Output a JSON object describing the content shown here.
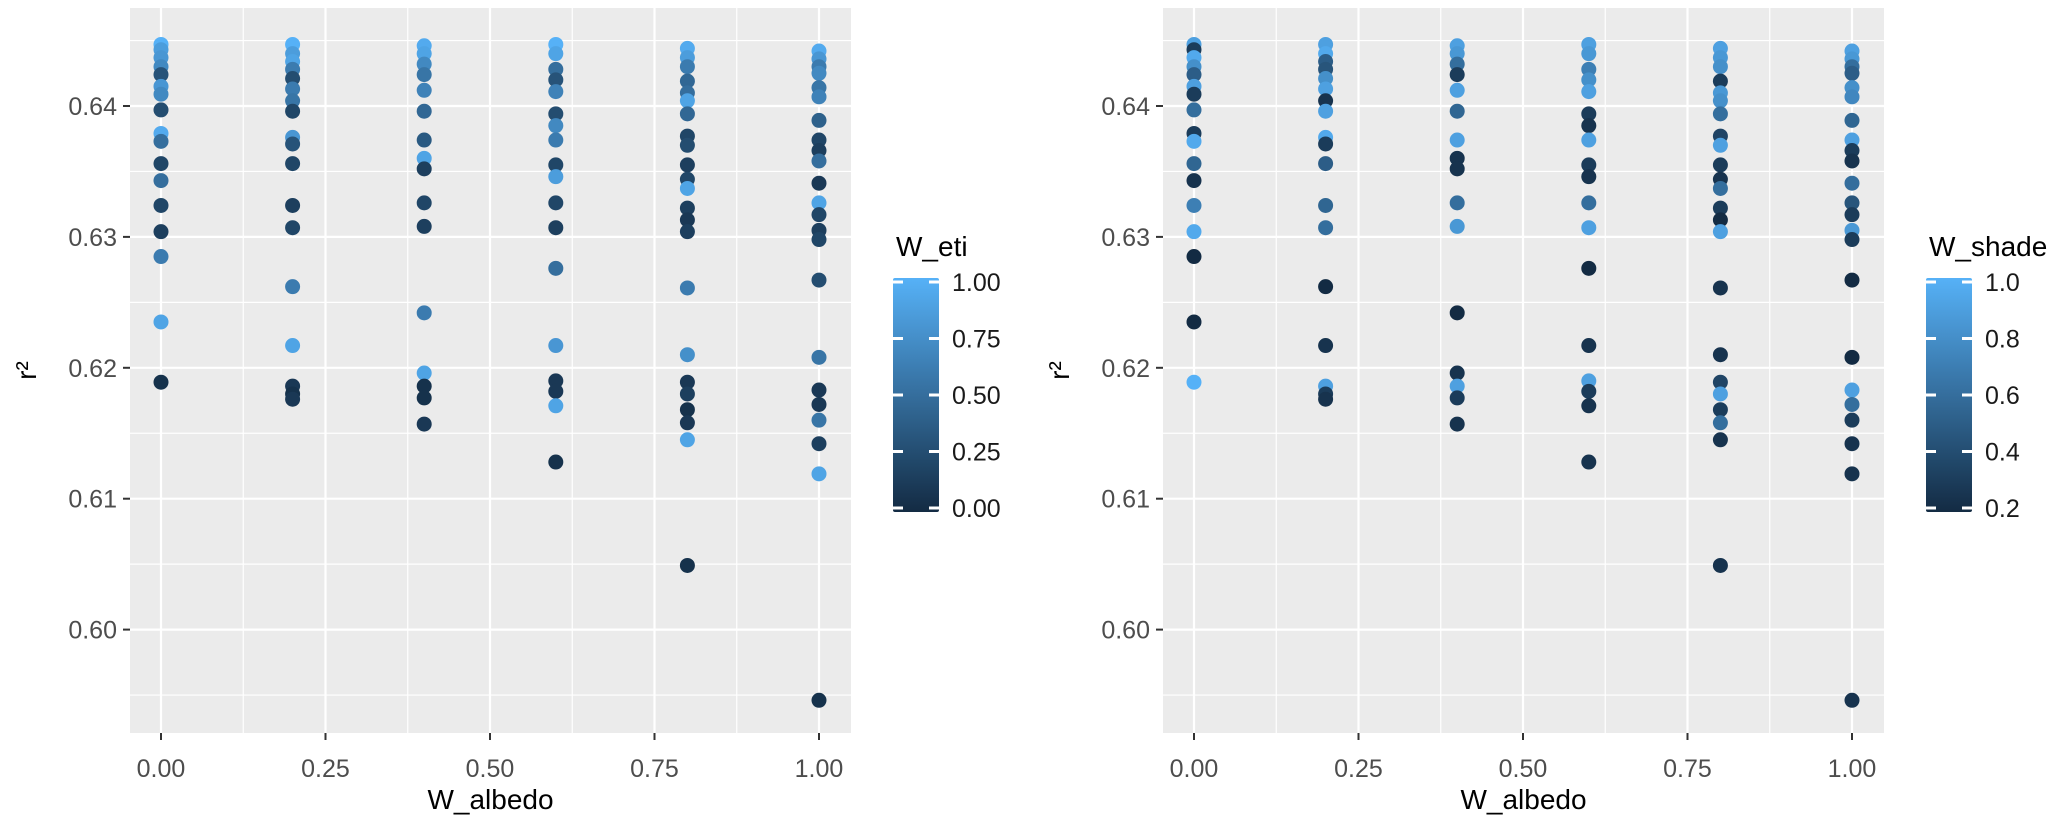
{
  "figure": {
    "background": "#ffffff",
    "panel_background": "#EBEBEB",
    "grid_color": "#FFFFFF",
    "tick_label_color": "#4D4D4D",
    "axis_title_color": "#000000",
    "tick_mark_color": "#333333",
    "gradient_low": "#132B43",
    "gradient_high": "#56B1F7"
  },
  "chart_data": [
    {
      "type": "scatter",
      "title": "",
      "xlabel": "W_albedo",
      "ylabel": "r²",
      "x_tick_labels": [
        "0.00",
        "0.25",
        "0.50",
        "0.75",
        "1.00"
      ],
      "x_tick_values": [
        0,
        0.25,
        0.5,
        0.75,
        1
      ],
      "y_tick_labels": [
        "0.64",
        "0.63",
        "0.62",
        "0.61",
        "0.60"
      ],
      "y_tick_values": [
        0.64,
        0.63,
        0.62,
        0.61,
        0.6
      ],
      "y_minor_values": [
        0.645,
        0.635,
        0.625,
        0.615,
        0.605,
        0.595
      ],
      "x_minor_values": [
        0.125,
        0.375,
        0.625,
        0.875
      ],
      "xlim": [
        -0.047,
        1.047
      ],
      "ylim": [
        0.5921,
        0.6475
      ],
      "grid": "major+minor",
      "point_color_key": "W_eti",
      "legend": {
        "title": "W_eti",
        "position": "right",
        "tick_labels": [
          "1.00",
          "0.75",
          "0.50",
          "0.25",
          "0.00"
        ],
        "tick_values": [
          1,
          0.75,
          0.5,
          0.25,
          0
        ],
        "domain": [
          0,
          1
        ],
        "low_color": "#132B43",
        "high_color": "#56B1F7"
      }
    },
    {
      "type": "scatter",
      "title": "",
      "xlabel": "W_albedo",
      "ylabel": "r²",
      "x_tick_labels": [
        "0.00",
        "0.25",
        "0.50",
        "0.75",
        "1.00"
      ],
      "x_tick_values": [
        0,
        0.25,
        0.5,
        0.75,
        1
      ],
      "y_tick_labels": [
        "0.64",
        "0.63",
        "0.62",
        "0.61",
        "0.60"
      ],
      "y_tick_values": [
        0.64,
        0.63,
        0.62,
        0.61,
        0.6
      ],
      "y_minor_values": [
        0.645,
        0.635,
        0.625,
        0.615,
        0.605,
        0.595
      ],
      "x_minor_values": [
        0.125,
        0.375,
        0.625,
        0.875
      ],
      "xlim": [
        -0.047,
        1.047
      ],
      "ylim": [
        0.5921,
        0.6475
      ],
      "grid": "major+minor",
      "point_color_key": "W_shade",
      "legend": {
        "title": "W_shade",
        "position": "right",
        "tick_labels": [
          "1.0",
          "0.8",
          "0.6",
          "0.4",
          "0.2"
        ],
        "tick_values": [
          1,
          0.8,
          0.6,
          0.4,
          0.2
        ],
        "domain": [
          0.2,
          1
        ],
        "low_color": "#132B43",
        "high_color": "#56B1F7"
      }
    }
  ],
  "points_format": [
    "W_albedo",
    "r2",
    "W_eti",
    "W_shade"
  ],
  "points": [
    [
      0,
      0.6447,
      1.0,
      0.9
    ],
    [
      0,
      0.6443,
      0.85,
      0.3
    ],
    [
      0,
      0.6437,
      0.8,
      0.95
    ],
    [
      0,
      0.643,
      0.7,
      0.8
    ],
    [
      0,
      0.6424,
      0.3,
      0.5
    ],
    [
      0,
      0.6415,
      0.8,
      0.9
    ],
    [
      0,
      0.6409,
      0.7,
      0.3
    ],
    [
      0,
      0.6397,
      0.25,
      0.6
    ],
    [
      0,
      0.6379,
      0.95,
      0.3
    ],
    [
      0,
      0.6373,
      0.5,
      0.95
    ],
    [
      0,
      0.6356,
      0.2,
      0.55
    ],
    [
      0,
      0.6343,
      0.5,
      0.25
    ],
    [
      0,
      0.6324,
      0.2,
      0.7
    ],
    [
      0,
      0.6304,
      0.15,
      0.95
    ],
    [
      0,
      0.6285,
      0.6,
      0.2
    ],
    [
      0,
      0.6235,
      0.9,
      0.2
    ],
    [
      0,
      0.6189,
      0.05,
      1.0
    ],
    [
      0.2,
      0.6447,
      1.0,
      0.9
    ],
    [
      0.2,
      0.644,
      0.85,
      0.95
    ],
    [
      0.2,
      0.6434,
      0.9,
      0.5
    ],
    [
      0.2,
      0.6428,
      0.6,
      0.45
    ],
    [
      0.2,
      0.6421,
      0.25,
      0.8
    ],
    [
      0.2,
      0.6413,
      0.6,
      0.9
    ],
    [
      0.2,
      0.6404,
      0.55,
      0.25
    ],
    [
      0.2,
      0.6396,
      0.2,
      0.9
    ],
    [
      0.2,
      0.6376,
      0.8,
      0.95
    ],
    [
      0.2,
      0.6371,
      0.3,
      0.3
    ],
    [
      0.2,
      0.6356,
      0.2,
      0.5
    ],
    [
      0.2,
      0.6324,
      0.15,
      0.55
    ],
    [
      0.2,
      0.6307,
      0.2,
      0.6
    ],
    [
      0.2,
      0.6262,
      0.6,
      0.2
    ],
    [
      0.2,
      0.6217,
      0.9,
      0.25
    ],
    [
      0.2,
      0.6186,
      0.1,
      0.9
    ],
    [
      0.2,
      0.618,
      0.05,
      0.3
    ],
    [
      0.2,
      0.6176,
      0.1,
      0.25
    ],
    [
      0.4,
      0.6446,
      0.95,
      0.9
    ],
    [
      0.4,
      0.644,
      0.9,
      0.85
    ],
    [
      0.4,
      0.6432,
      0.7,
      0.6
    ],
    [
      0.4,
      0.6424,
      0.55,
      0.3
    ],
    [
      0.4,
      0.6412,
      0.65,
      0.9
    ],
    [
      0.4,
      0.6396,
      0.45,
      0.55
    ],
    [
      0.4,
      0.6374,
      0.35,
      0.9
    ],
    [
      0.4,
      0.636,
      0.9,
      0.25
    ],
    [
      0.4,
      0.6352,
      0.15,
      0.25
    ],
    [
      0.4,
      0.6326,
      0.2,
      0.6
    ],
    [
      0.4,
      0.6308,
      0.15,
      0.85
    ],
    [
      0.4,
      0.6242,
      0.6,
      0.2
    ],
    [
      0.4,
      0.6196,
      0.9,
      0.25
    ],
    [
      0.4,
      0.6186,
      0.05,
      0.9
    ],
    [
      0.4,
      0.6177,
      0.05,
      0.3
    ],
    [
      0.4,
      0.6157,
      0.1,
      0.25
    ],
    [
      0.6,
      0.6447,
      1.0,
      0.9
    ],
    [
      0.6,
      0.644,
      0.9,
      0.85
    ],
    [
      0.6,
      0.6428,
      0.5,
      0.7
    ],
    [
      0.6,
      0.642,
      0.3,
      0.8
    ],
    [
      0.6,
      0.6411,
      0.65,
      0.9
    ],
    [
      0.6,
      0.6394,
      0.25,
      0.3
    ],
    [
      0.6,
      0.6385,
      0.7,
      0.25
    ],
    [
      0.6,
      0.6374,
      0.6,
      0.9
    ],
    [
      0.6,
      0.6355,
      0.2,
      0.3
    ],
    [
      0.6,
      0.6346,
      0.85,
      0.25
    ],
    [
      0.6,
      0.6326,
      0.2,
      0.6
    ],
    [
      0.6,
      0.6307,
      0.15,
      0.9
    ],
    [
      0.6,
      0.6276,
      0.5,
      0.2
    ],
    [
      0.6,
      0.6217,
      0.8,
      0.25
    ],
    [
      0.6,
      0.619,
      0.1,
      0.9
    ],
    [
      0.6,
      0.6182,
      0.1,
      0.3
    ],
    [
      0.6,
      0.6171,
      0.9,
      0.25
    ],
    [
      0.6,
      0.6128,
      0.05,
      0.25
    ],
    [
      0.8,
      0.6444,
      0.95,
      0.9
    ],
    [
      0.8,
      0.6437,
      0.85,
      0.85
    ],
    [
      0.8,
      0.643,
      0.6,
      0.8
    ],
    [
      0.8,
      0.6419,
      0.45,
      0.3
    ],
    [
      0.8,
      0.641,
      0.5,
      0.85
    ],
    [
      0.8,
      0.6404,
      0.9,
      0.8
    ],
    [
      0.8,
      0.6394,
      0.45,
      0.6
    ],
    [
      0.8,
      0.6377,
      0.2,
      0.35
    ],
    [
      0.8,
      0.637,
      0.25,
      0.9
    ],
    [
      0.8,
      0.6355,
      0.15,
      0.3
    ],
    [
      0.8,
      0.6344,
      0.2,
      0.25
    ],
    [
      0.8,
      0.6337,
      0.9,
      0.6
    ],
    [
      0.8,
      0.6322,
      0.15,
      0.3
    ],
    [
      0.8,
      0.6313,
      0.1,
      0.2
    ],
    [
      0.8,
      0.6304,
      0.15,
      0.9
    ],
    [
      0.8,
      0.6261,
      0.6,
      0.25
    ],
    [
      0.8,
      0.621,
      0.75,
      0.25
    ],
    [
      0.8,
      0.6189,
      0.1,
      0.35
    ],
    [
      0.8,
      0.618,
      0.15,
      0.9
    ],
    [
      0.8,
      0.6168,
      0.05,
      0.3
    ],
    [
      0.8,
      0.6158,
      0.1,
      0.6
    ],
    [
      0.8,
      0.6145,
      0.9,
      0.25
    ],
    [
      0.8,
      0.6049,
      0.05,
      0.25
    ],
    [
      1,
      0.6442,
      0.95,
      0.9
    ],
    [
      1,
      0.6436,
      0.8,
      0.85
    ],
    [
      1,
      0.643,
      0.6,
      0.6
    ],
    [
      1,
      0.6425,
      0.7,
      0.5
    ],
    [
      1,
      0.6414,
      0.55,
      0.8
    ],
    [
      1,
      0.6407,
      0.65,
      0.75
    ],
    [
      1,
      0.6389,
      0.4,
      0.55
    ],
    [
      1,
      0.6374,
      0.2,
      0.9
    ],
    [
      1,
      0.6366,
      0.15,
      0.3
    ],
    [
      1,
      0.6358,
      0.5,
      0.25
    ],
    [
      1,
      0.6341,
      0.1,
      0.6
    ],
    [
      1,
      0.6326,
      0.9,
      0.45
    ],
    [
      1,
      0.6317,
      0.2,
      0.3
    ],
    [
      1,
      0.6305,
      0.15,
      0.85
    ],
    [
      1,
      0.6298,
      0.2,
      0.3
    ],
    [
      1,
      0.6267,
      0.25,
      0.2
    ],
    [
      1,
      0.6208,
      0.55,
      0.2
    ],
    [
      1,
      0.6183,
      0.1,
      0.9
    ],
    [
      1,
      0.6172,
      0.1,
      0.6
    ],
    [
      1,
      0.616,
      0.55,
      0.3
    ],
    [
      1,
      0.6142,
      0.15,
      0.25
    ],
    [
      1,
      0.6119,
      0.9,
      0.25
    ],
    [
      1,
      0.5946,
      0.05,
      0.25
    ]
  ]
}
